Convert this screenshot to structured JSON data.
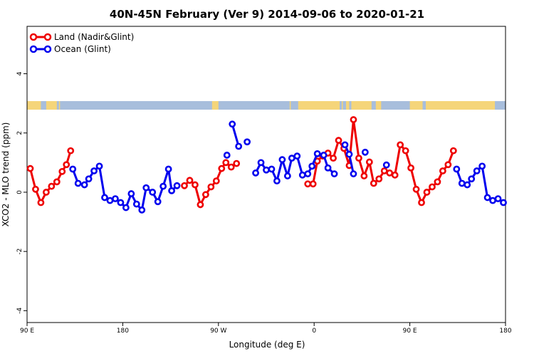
{
  "chart_data": {
    "type": "line",
    "title": "40N-45N February (Ver 9)   2014-09-06 to 2020-01-21",
    "xlabel": "Longitude (deg E)",
    "ylabel": "XCO2 - MLO trend (ppm)",
    "x_ticks": [
      {
        "value": 90,
        "label": "90 E"
      },
      {
        "value": 180,
        "label": "180"
      },
      {
        "value": 270,
        "label": "90 W"
      },
      {
        "value": 360,
        "label": "0"
      },
      {
        "value": 450,
        "label": "90 E"
      },
      {
        "value": 540,
        "label": "180"
      }
    ],
    "xlim": [
      90,
      540
    ],
    "y_ticks": [
      -4,
      -2,
      0,
      2,
      4
    ],
    "ylim": [
      -4.4,
      5.6
    ],
    "grid": false,
    "legend_position": "top-left",
    "land_ocean_colors": {
      "land": "#f5d57a",
      "ocean": "#a8bedc"
    },
    "series": [
      {
        "name": "Land (Nadir&Glint)",
        "color": "#ee0000",
        "segments": [
          [
            [
              93,
              0.8
            ],
            [
              98,
              0.1
            ],
            [
              103,
              -0.35
            ],
            [
              108,
              0.0
            ],
            [
              113,
              0.2
            ],
            [
              118,
              0.35
            ],
            [
              123,
              0.7
            ],
            [
              127,
              0.93
            ],
            [
              131,
              1.4
            ]
          ],
          [
            [
              238,
              0.22
            ],
            [
              243,
              0.4
            ],
            [
              248,
              0.25
            ],
            [
              253,
              -0.42
            ],
            [
              258,
              -0.08
            ],
            [
              263,
              0.18
            ],
            [
              268,
              0.38
            ],
            [
              273,
              0.8
            ],
            [
              277,
              1.0
            ],
            [
              282,
              0.85
            ],
            [
              287,
              0.97
            ]
          ],
          [
            [
              354,
              0.28
            ],
            [
              359,
              0.28
            ],
            [
              363,
              1.05
            ],
            [
              368,
              1.22
            ],
            [
              373,
              1.32
            ],
            [
              378,
              1.15
            ],
            [
              383,
              1.75
            ],
            [
              388,
              1.48
            ],
            [
              393,
              0.9
            ],
            [
              397,
              2.45
            ],
            [
              402,
              1.15
            ],
            [
              407,
              0.55
            ],
            [
              412,
              1.02
            ],
            [
              416,
              0.3
            ],
            [
              421,
              0.45
            ],
            [
              426,
              0.72
            ],
            [
              431,
              0.65
            ],
            [
              436,
              0.58
            ],
            [
              441,
              1.6
            ],
            [
              446,
              1.4
            ],
            [
              451,
              0.82
            ],
            [
              456,
              0.1
            ],
            [
              461,
              -0.35
            ],
            [
              466,
              0.0
            ],
            [
              471,
              0.18
            ],
            [
              476,
              0.35
            ],
            [
              481,
              0.72
            ],
            [
              486,
              0.93
            ],
            [
              491,
              1.4
            ]
          ]
        ]
      },
      {
        "name": "Ocean (Glint)",
        "color": "#0000ee",
        "segments": [
          [
            [
              133,
              0.78
            ],
            [
              138,
              0.3
            ],
            [
              144,
              0.25
            ],
            [
              148,
              0.45
            ],
            [
              153,
              0.72
            ],
            [
              158,
              0.88
            ],
            [
              163,
              -0.18
            ],
            [
              168,
              -0.28
            ],
            [
              173,
              -0.22
            ],
            [
              178,
              -0.35
            ],
            [
              183,
              -0.52
            ],
            [
              188,
              -0.05
            ],
            [
              193,
              -0.4
            ],
            [
              198,
              -0.6
            ],
            [
              202,
              0.15
            ],
            [
              208,
              0.0
            ],
            [
              213,
              -0.32
            ],
            [
              218,
              0.2
            ],
            [
              223,
              0.78
            ],
            [
              226,
              0.05
            ],
            [
              231,
              0.22
            ]
          ],
          [
            [
              278,
              1.25
            ]
          ],
          [
            [
              283,
              2.3
            ],
            [
              289,
              1.55
            ]
          ],
          [
            [
              297,
              1.7
            ]
          ],
          [
            [
              305,
              0.65
            ],
            [
              310,
              1.0
            ],
            [
              315,
              0.75
            ],
            [
              320,
              0.78
            ],
            [
              325,
              0.38
            ],
            [
              330,
              1.1
            ],
            [
              335,
              0.55
            ],
            [
              339,
              1.15
            ],
            [
              344,
              1.22
            ],
            [
              349,
              0.58
            ],
            [
              354,
              0.62
            ],
            [
              358,
              0.88
            ],
            [
              363,
              1.3
            ],
            [
              369,
              1.25
            ],
            [
              373,
              0.82
            ],
            [
              379,
              0.62
            ]
          ],
          [
            [
              389,
              1.6
            ],
            [
              393,
              1.28
            ],
            [
              397,
              0.62
            ]
          ],
          [
            [
              408,
              1.35
            ]
          ],
          [
            [
              428,
              0.92
            ]
          ],
          [
            [
              494,
              0.78
            ],
            [
              499,
              0.3
            ],
            [
              504,
              0.25
            ],
            [
              508,
              0.45
            ],
            [
              513,
              0.72
            ],
            [
              518,
              0.88
            ],
            [
              523,
              -0.18
            ],
            [
              528,
              -0.28
            ],
            [
              533,
              -0.22
            ],
            [
              538,
              -0.35
            ]
          ]
        ]
      }
    ]
  }
}
